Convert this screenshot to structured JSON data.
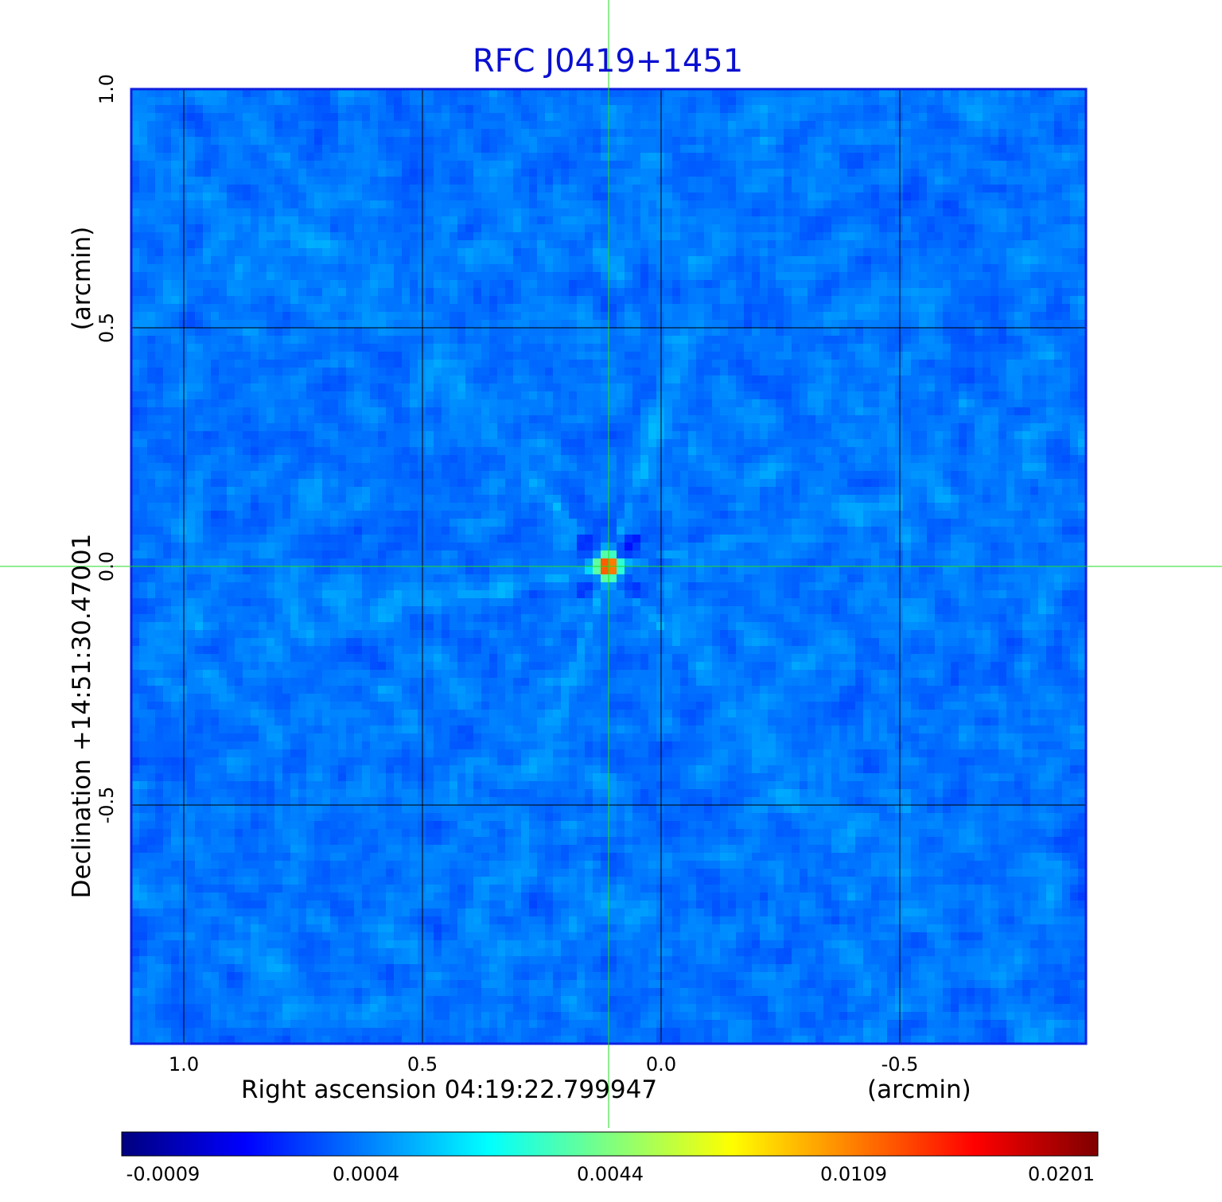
{
  "title": "RFC J0419+1451",
  "x_axis": {
    "label": "Right ascension  04:19:22.799947",
    "unit": "(arcmin)",
    "ticks": [
      "1.0",
      "0.5",
      "0.0",
      "-0.5"
    ],
    "tick_values": [
      1.0,
      0.5,
      0.0,
      -0.5
    ],
    "range": [
      1.11,
      -0.89
    ]
  },
  "y_axis": {
    "label": "Declination  +14:51:30.47001",
    "unit": "(arcmin)",
    "ticks": [
      "1.0",
      "0.5",
      "0.0",
      "-0.5"
    ],
    "tick_values": [
      1.0,
      0.5,
      0.0,
      -0.5
    ],
    "range": [
      -1.0,
      1.0
    ]
  },
  "colorbar": {
    "ticks": [
      "-0.0009",
      "0.0004",
      "0.0044",
      "0.0109",
      "0.0201"
    ],
    "colormap": "jet"
  },
  "colors": {
    "title": "#0a10d0",
    "frame": "#1020e0",
    "crosshair": "#22dd22",
    "grid": "#000000",
    "background_map": "#1a7cf0"
  },
  "source": {
    "ra_offset_arcmin": 0.11,
    "dec_offset_arcmin": 0.0
  }
}
